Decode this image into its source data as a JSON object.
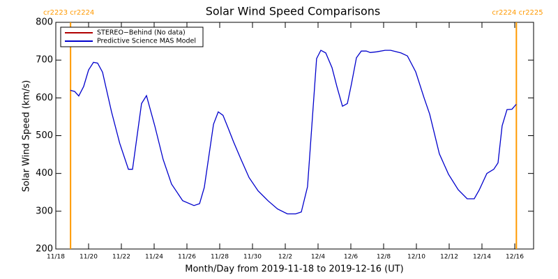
{
  "chart_data": {
    "type": "line",
    "title": "Solar Wind Speed Comparisons",
    "xlabel": "Month/Day from 2019-11-18 to 2019-12-16 (UT)",
    "ylabel": "Solar Wind Speed (km/s)",
    "xlim": [
      0,
      29.15
    ],
    "xticks": [
      {
        "value": 0,
        "label": "11/18"
      },
      {
        "value": 2,
        "label": "11/20"
      },
      {
        "value": 4,
        "label": "11/22"
      },
      {
        "value": 6,
        "label": "11/24"
      },
      {
        "value": 8,
        "label": "11/26"
      },
      {
        "value": 10,
        "label": "11/28"
      },
      {
        "value": 12,
        "label": "11/30"
      },
      {
        "value": 14,
        "label": "12/2"
      },
      {
        "value": 16,
        "label": "12/4"
      },
      {
        "value": 18,
        "label": "12/6"
      },
      {
        "value": 20,
        "label": "12/8"
      },
      {
        "value": 22,
        "label": "12/10"
      },
      {
        "value": 24,
        "label": "12/12"
      },
      {
        "value": 26,
        "label": "12/14"
      },
      {
        "value": 28,
        "label": "12/16"
      }
    ],
    "ylim": [
      200,
      800
    ],
    "yticks": [
      200,
      300,
      400,
      500,
      600,
      700,
      800
    ],
    "legend": "upper left",
    "series": [
      {
        "name": "STEREO−Behind (No data)",
        "color": "#b00000",
        "x": [],
        "values": []
      },
      {
        "name": "Predictive Science MAS Model",
        "color": "#0000cc",
        "x": [
          0.89,
          1.15,
          1.4,
          1.7,
          2.0,
          2.3,
          2.55,
          2.85,
          3.4,
          3.9,
          4.43,
          4.68,
          5.23,
          5.53,
          6.04,
          6.55,
          7.06,
          7.74,
          8.43,
          8.77,
          9.06,
          9.62,
          9.91,
          10.2,
          10.5,
          10.85,
          11.28,
          11.79,
          12.34,
          12.94,
          13.53,
          14.13,
          14.64,
          14.98,
          15.36,
          15.91,
          16.17,
          16.47,
          16.85,
          17.15,
          17.49,
          17.79,
          18.04,
          18.34,
          18.64,
          18.94,
          19.19,
          19.57,
          20.09,
          20.43,
          21.06,
          21.45,
          21.96,
          22.47,
          22.81,
          23.4,
          23.96,
          24.55,
          25.1,
          25.53,
          25.83,
          26.3,
          26.72,
          26.98,
          27.23,
          27.53,
          27.83,
          28.09
        ],
        "values": [
          620,
          617,
          605,
          630,
          674,
          694,
          692,
          668,
          563,
          480,
          411,
          411,
          585,
          606,
          526,
          437,
          372,
          328,
          315,
          320,
          363,
          530,
          563,
          554,
          522,
          483,
          439,
          389,
          354,
          328,
          306,
          293,
          293,
          298,
          365,
          704,
          726,
          719,
          680,
          630,
          578,
          585,
          637,
          706,
          724,
          724,
          720,
          722,
          726,
          726,
          719,
          711,
          669,
          600,
          557,
          452,
          398,
          357,
          333,
          333,
          356,
          400,
          411,
          428,
          526,
          569,
          570,
          583
        ]
      }
    ],
    "markers": [
      {
        "x": 0.9,
        "label": "cr2223 cr2224",
        "color": "#ff9900"
      },
      {
        "x": 28.1,
        "label": "cr2224 cr2225",
        "color": "#ff9900"
      }
    ]
  }
}
